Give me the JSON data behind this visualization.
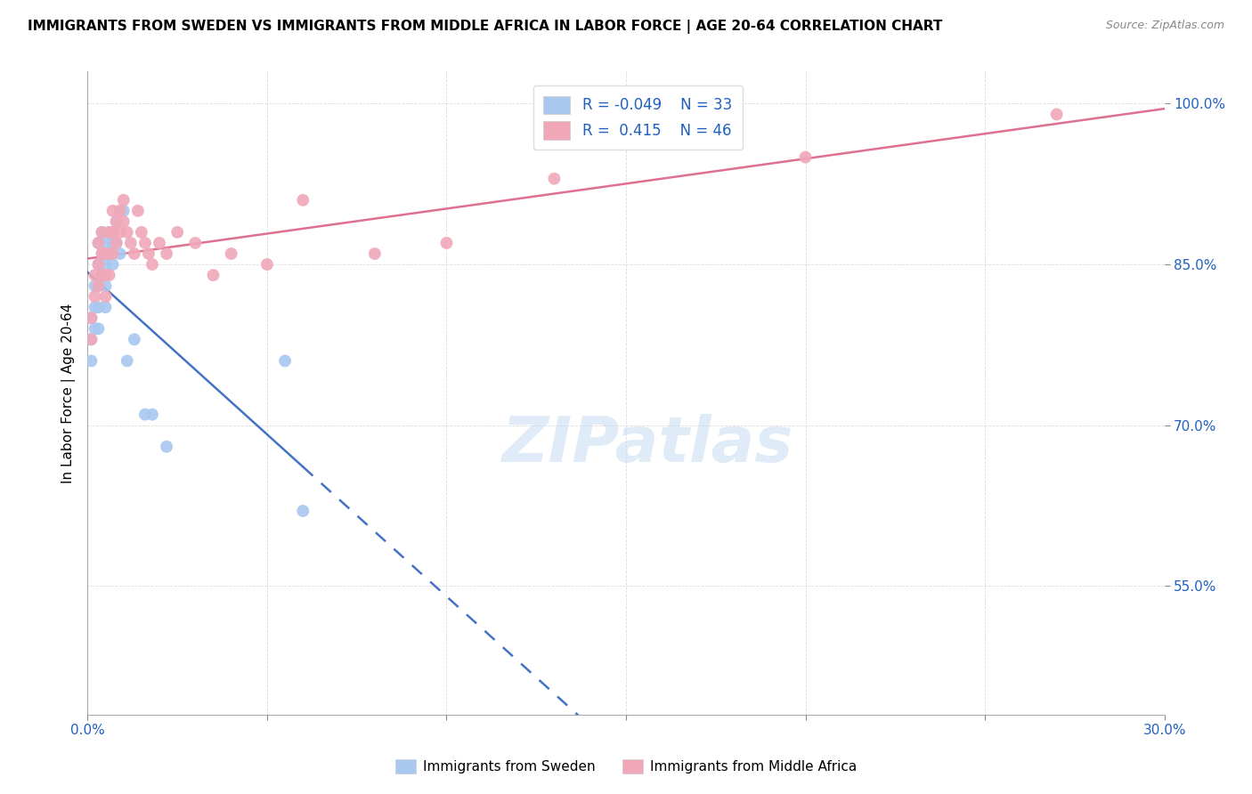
{
  "title": "IMMIGRANTS FROM SWEDEN VS IMMIGRANTS FROM MIDDLE AFRICA IN LABOR FORCE | AGE 20-64 CORRELATION CHART",
  "source": "Source: ZipAtlas.com",
  "ylabel": "In Labor Force | Age 20-64",
  "ytick_labels": [
    "100.0%",
    "85.0%",
    "70.0%",
    "55.0%"
  ],
  "ytick_values": [
    1.0,
    0.85,
    0.7,
    0.55
  ],
  "xlim": [
    0.0,
    0.3
  ],
  "ylim": [
    0.43,
    1.03
  ],
  "R_sweden": -0.049,
  "N_sweden": 33,
  "R_midafrica": 0.415,
  "N_midafrica": 46,
  "sweden_color": "#a8c8f0",
  "midafrica_color": "#f0a8b8",
  "sweden_line_color": "#4472c4",
  "midafrica_line_color": "#e07090",
  "watermark": "ZIPatlas",
  "legend_label_sweden": "Immigrants from Sweden",
  "legend_label_midafrica": "Immigrants from Middle Africa",
  "sweden_x": [
    0.001,
    0.001,
    0.001,
    0.002,
    0.002,
    0.002,
    0.003,
    0.003,
    0.003,
    0.003,
    0.003,
    0.004,
    0.004,
    0.004,
    0.005,
    0.005,
    0.005,
    0.005,
    0.006,
    0.006,
    0.007,
    0.007,
    0.008,
    0.008,
    0.009,
    0.01,
    0.011,
    0.013,
    0.016,
    0.018,
    0.022,
    0.06,
    0.055
  ],
  "sweden_y": [
    0.8,
    0.78,
    0.76,
    0.83,
    0.81,
    0.79,
    0.87,
    0.85,
    0.83,
    0.81,
    0.79,
    0.88,
    0.86,
    0.84,
    0.87,
    0.85,
    0.83,
    0.81,
    0.88,
    0.86,
    0.87,
    0.85,
    0.89,
    0.87,
    0.86,
    0.9,
    0.76,
    0.78,
    0.71,
    0.71,
    0.68,
    0.62,
    0.76
  ],
  "midafrica_x": [
    0.001,
    0.001,
    0.002,
    0.002,
    0.003,
    0.003,
    0.003,
    0.004,
    0.004,
    0.004,
    0.005,
    0.005,
    0.005,
    0.006,
    0.006,
    0.006,
    0.007,
    0.007,
    0.007,
    0.008,
    0.008,
    0.009,
    0.009,
    0.01,
    0.01,
    0.011,
    0.012,
    0.013,
    0.014,
    0.015,
    0.016,
    0.017,
    0.018,
    0.02,
    0.022,
    0.025,
    0.03,
    0.035,
    0.04,
    0.05,
    0.06,
    0.08,
    0.1,
    0.13,
    0.2,
    0.27
  ],
  "midafrica_y": [
    0.8,
    0.78,
    0.84,
    0.82,
    0.87,
    0.85,
    0.83,
    0.88,
    0.86,
    0.84,
    0.86,
    0.84,
    0.82,
    0.88,
    0.86,
    0.84,
    0.9,
    0.88,
    0.86,
    0.89,
    0.87,
    0.9,
    0.88,
    0.91,
    0.89,
    0.88,
    0.87,
    0.86,
    0.9,
    0.88,
    0.87,
    0.86,
    0.85,
    0.87,
    0.86,
    0.88,
    0.87,
    0.84,
    0.86,
    0.85,
    0.91,
    0.86,
    0.87,
    0.93,
    0.95,
    0.99
  ],
  "xtick_positions": [
    0.0,
    0.05,
    0.1,
    0.15,
    0.2,
    0.25,
    0.3
  ],
  "grid_color": "#cccccc",
  "grid_alpha": 0.7
}
